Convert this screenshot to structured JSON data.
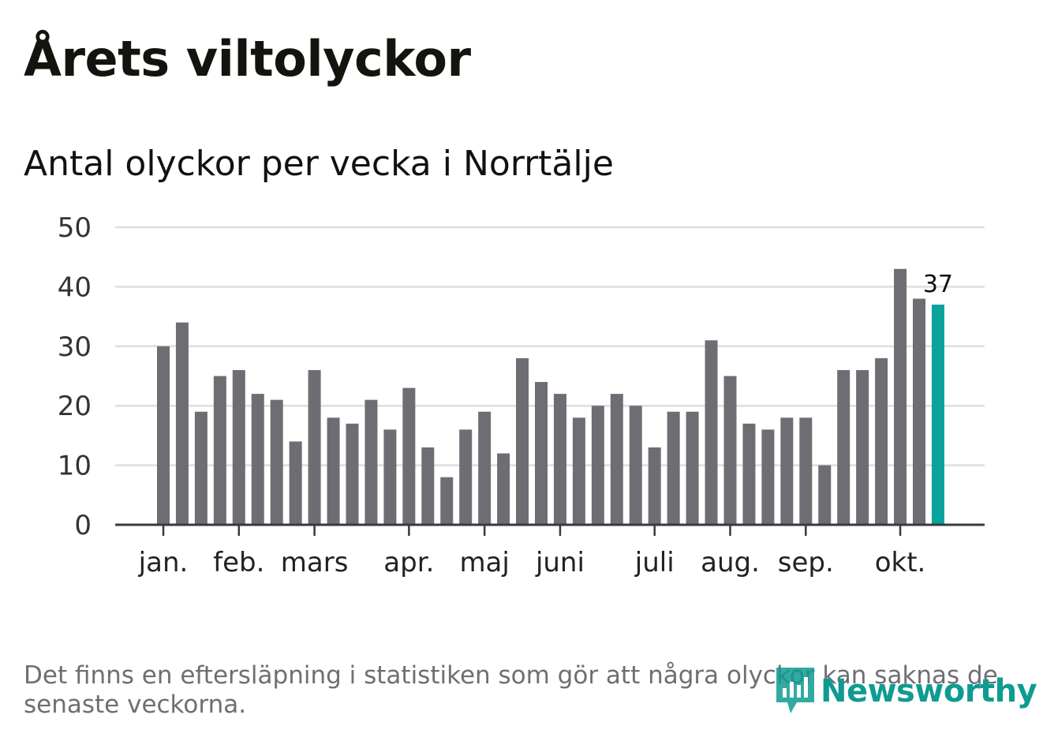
{
  "title": "Årets viltolyckor",
  "subtitle": "Antal olyckor per vecka i Norrtälje",
  "note": "Det finns en eftersläpning i statistiken som gör att några olyckor kan saknas de senaste veckorna.",
  "brand": "Newsworthy",
  "colors": {
    "bar": "#6e6d73",
    "highlight": "#0aa39b",
    "grid": "#dedede",
    "axis": "#3a3a3a",
    "brand": "#0e9b92"
  },
  "chart_data": {
    "type": "bar",
    "title": "Antal olyckor per vecka i Norrtälje",
    "xlabel": "",
    "ylabel": "",
    "ylim": [
      0,
      50
    ],
    "yticks": [
      0,
      10,
      20,
      30,
      40,
      50
    ],
    "grid": true,
    "values": [
      30,
      34,
      19,
      25,
      26,
      22,
      21,
      14,
      26,
      18,
      17,
      21,
      16,
      23,
      13,
      8,
      16,
      19,
      12,
      28,
      24,
      22,
      18,
      20,
      22,
      20,
      13,
      19,
      19,
      31,
      25,
      17,
      16,
      18,
      18,
      10,
      26,
      26,
      28,
      43,
      38,
      37
    ],
    "highlight_index": 41,
    "highlight_label": "37",
    "month_labels": [
      {
        "label": "jan.",
        "bar_index": 0
      },
      {
        "label": "feb.",
        "bar_index": 4
      },
      {
        "label": "mars",
        "bar_index": 8
      },
      {
        "label": "apr.",
        "bar_index": 13
      },
      {
        "label": "maj",
        "bar_index": 17
      },
      {
        "label": "juni",
        "bar_index": 21
      },
      {
        "label": "juli",
        "bar_index": 26
      },
      {
        "label": "aug.",
        "bar_index": 30
      },
      {
        "label": "sep.",
        "bar_index": 34
      },
      {
        "label": "okt.",
        "bar_index": 39
      }
    ]
  }
}
